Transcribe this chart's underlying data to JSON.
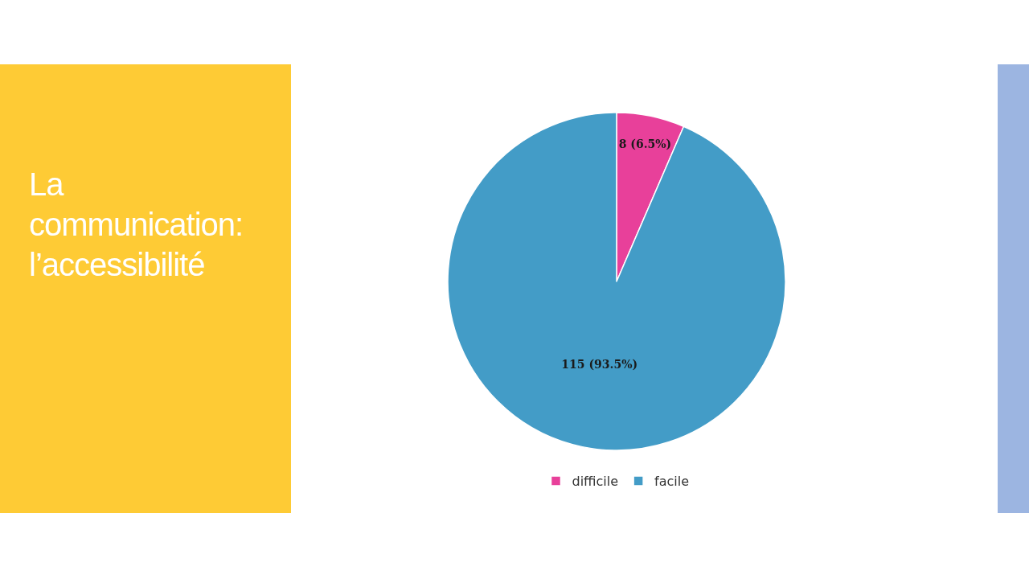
{
  "chart_data": {
    "type": "pie",
    "title": "La communication: l’accessibilité",
    "categories": [
      "difficile",
      "facile"
    ],
    "values": [
      8,
      115
    ],
    "colors": [
      "#e8409a",
      "#439cc7"
    ],
    "value_labels": [
      "8 (6.5%)",
      "115 (93.5%)"
    ],
    "legend": "bottom"
  }
}
